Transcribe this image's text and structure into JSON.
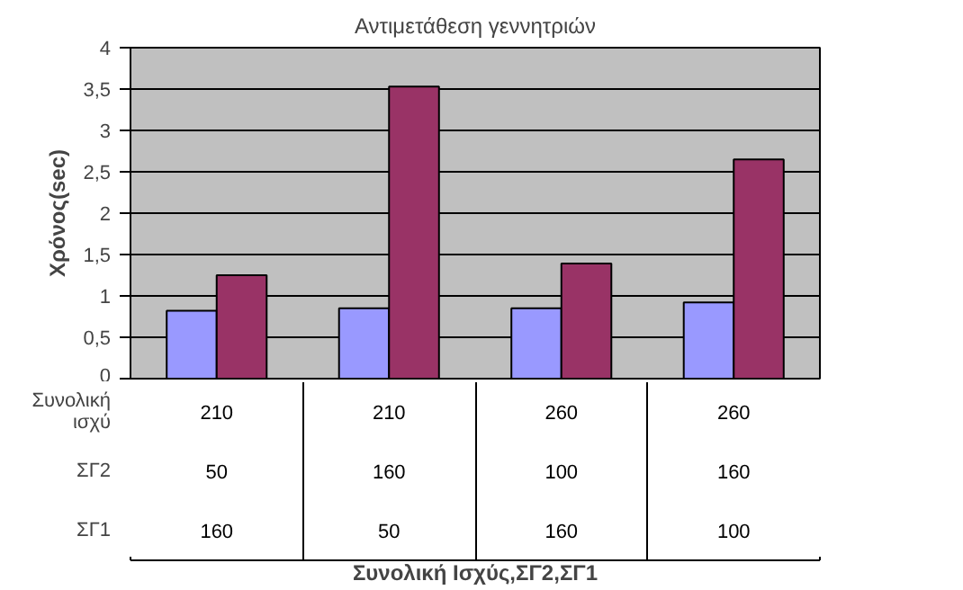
{
  "chart_data": {
    "type": "bar",
    "title": "Αντιμετάθεση γεννητριών",
    "ylabel": "Χρόνος(sec)",
    "categories": [
      "210\n50\n160",
      "210\n160\n50",
      "260\n100\n160",
      "260\n160\n100"
    ],
    "series": [
      {
        "color": "#9999ff",
        "values": [
          0.82,
          0.85,
          0.85,
          0.92
        ]
      },
      {
        "color": "#993366",
        "values": [
          1.25,
          3.53,
          1.39,
          2.65
        ]
      }
    ],
    "ylim": [
      0,
      4
    ],
    "yticks": [
      0,
      {
        "value": 0.5,
        "label": "0,5"
      },
      1,
      {
        "value": 1.5,
        "label": "1,5"
      },
      2,
      {
        "value": 2.5,
        "label": "2,5"
      },
      3,
      {
        "value": 3.5,
        "label": "3,5"
      },
      4
    ],
    "grid": "y",
    "annotations": [
      "Συνολική\nισχύ",
      "ΣΓ2",
      "ΣΓ1",
      "Συνολική Ισχύς,ΣΓ2,ΣΓ1"
    ]
  }
}
